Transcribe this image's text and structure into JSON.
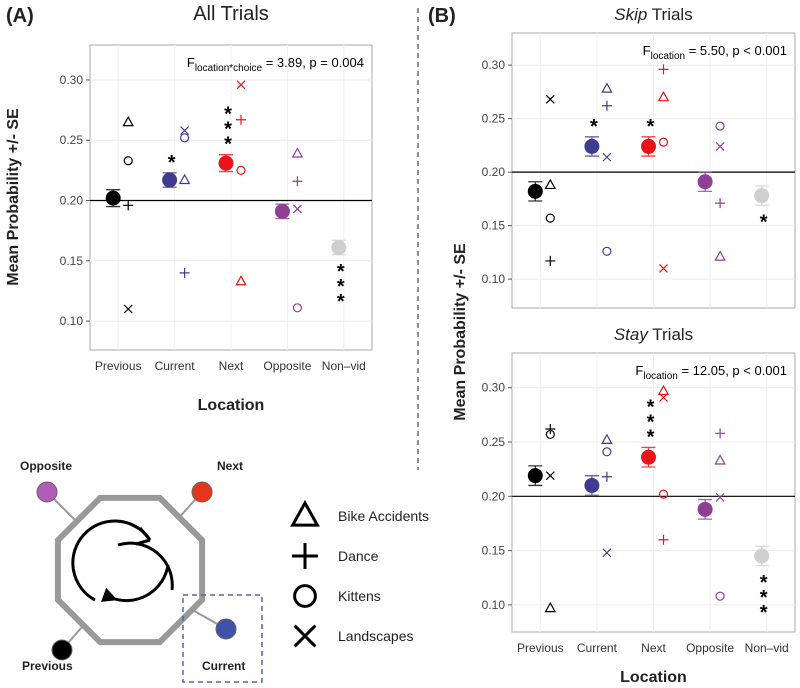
{
  "panel_labels": [
    "(A)",
    "(B)"
  ],
  "chart_data": [
    {
      "type": "scatter",
      "title": "All Trials",
      "ylabel": "Mean Probability +/- SE",
      "xlabel": "Location",
      "annotation": {
        "symbol": "F",
        "subscript": "location*choice",
        "text": " = 3.89, p = 0.004"
      },
      "categories": [
        "Previous",
        "Current",
        "Next",
        "Opposite",
        "Non–vid"
      ],
      "category_colors": [
        "#000000",
        "#3f3b8f",
        "#e8141a",
        "#8e3f93",
        "#cfcfcf"
      ],
      "means": [
        0.202,
        0.217,
        0.231,
        0.191,
        0.161
      ],
      "se": [
        0.007,
        0.006,
        0.007,
        0.006,
        0.006
      ],
      "significance": [
        null,
        "*",
        "***",
        null,
        "***"
      ],
      "series": [
        {
          "name": "Bike Accidents",
          "marker": "triangle",
          "values": [
            0.265,
            0.217,
            0.133,
            0.239,
            null
          ]
        },
        {
          "name": "Dance",
          "marker": "plus",
          "values": [
            0.196,
            0.14,
            0.267,
            0.216,
            null
          ]
        },
        {
          "name": "Kittens",
          "marker": "circle",
          "values": [
            0.233,
            0.252,
            0.225,
            0.111,
            null
          ]
        },
        {
          "name": "Landscapes",
          "marker": "x",
          "values": [
            0.11,
            0.258,
            0.296,
            0.193,
            null
          ]
        }
      ],
      "hline": 0.2,
      "ylim": [
        0.076,
        0.329
      ],
      "yticks": [
        {
          "value": 0.1,
          "label": "0.10"
        },
        0.15,
        {
          "value": 0.2,
          "label": "0.20"
        },
        0.25,
        {
          "value": 0.3,
          "label": "0.30"
        }
      ],
      "grid": true
    },
    {
      "type": "scatter",
      "title": [
        {
          "text": "Skip",
          "italic": true
        },
        {
          "text": " Trials"
        }
      ],
      "ylabel": "Mean Probability +/- SE",
      "annotation": {
        "symbol": "F",
        "subscript": "location",
        "text": " = 5.50, p < 0.001"
      },
      "category_colors": [
        "#000000",
        "#3f3b8f",
        "#e8141a",
        "#8e3f93",
        "#cfcfcf"
      ],
      "means": [
        0.182,
        0.224,
        0.224,
        0.191,
        0.178
      ],
      "se": [
        0.009,
        0.009,
        0.009,
        0.009,
        0.009
      ],
      "significance": [
        null,
        "*",
        "*",
        null,
        "*"
      ],
      "series": [
        {
          "marker": "triangle",
          "values": [
            0.188,
            0.278,
            0.27,
            0.121,
            null
          ]
        },
        {
          "marker": "plus",
          "values": [
            0.117,
            0.262,
            0.296,
            0.171,
            null
          ]
        },
        {
          "marker": "circle",
          "values": [
            0.157,
            0.126,
            0.228,
            0.243,
            null
          ]
        },
        {
          "marker": "x",
          "values": [
            0.268,
            0.214,
            0.11,
            0.224,
            null
          ]
        }
      ],
      "hline": 0.2,
      "ylim": [
        0.073,
        0.33
      ],
      "yticks": [
        {
          "value": 0.1,
          "label": "0.10"
        },
        0.15,
        {
          "value": 0.2,
          "label": "0.20"
        },
        0.25,
        {
          "value": 0.3,
          "label": "0.30"
        }
      ],
      "grid": true
    },
    {
      "type": "scatter",
      "title": [
        {
          "text": "Stay",
          "italic": true
        },
        {
          "text": " Trials"
        }
      ],
      "xlabel": "Location",
      "annotation": {
        "symbol": "F",
        "subscript": "location",
        "text": " = 12.05, p < 0.001"
      },
      "categories": [
        "Previous",
        "Current",
        "Next",
        "Opposite",
        "Non–vid"
      ],
      "category_colors": [
        "#000000",
        "#3f3b8f",
        "#e8141a",
        "#8e3f93",
        "#cfcfcf"
      ],
      "means": [
        0.219,
        0.21,
        0.236,
        0.188,
        0.145
      ],
      "se": [
        0.009,
        0.009,
        0.009,
        0.009,
        0.009
      ],
      "significance": [
        null,
        null,
        "***",
        null,
        "***"
      ],
      "series": [
        {
          "marker": "triangle",
          "values": [
            0.097,
            0.252,
            0.297,
            0.233,
            null
          ]
        },
        {
          "marker": "plus",
          "values": [
            0.262,
            0.218,
            0.16,
            0.258,
            null
          ]
        },
        {
          "marker": "circle",
          "values": [
            0.257,
            0.241,
            0.202,
            0.108,
            null
          ]
        },
        {
          "marker": "x",
          "values": [
            0.219,
            0.148,
            0.291,
            0.199,
            null
          ]
        }
      ],
      "hline": 0.2,
      "ylim": [
        0.075,
        0.332
      ],
      "yticks": [
        {
          "value": 0.1,
          "label": "0.10"
        },
        0.15,
        {
          "value": 0.2,
          "label": "0.20"
        },
        0.25,
        {
          "value": 0.3,
          "label": "0.30"
        }
      ],
      "grid": true
    }
  ],
  "diagram": {
    "nodes": [
      {
        "label": "Opposite",
        "color": "#b35bb8"
      },
      {
        "label": "Next",
        "color": "#e8341a"
      },
      {
        "label": "Previous",
        "color": "#000000"
      },
      {
        "label": "Current",
        "color": "#3e52a8"
      }
    ]
  }
}
